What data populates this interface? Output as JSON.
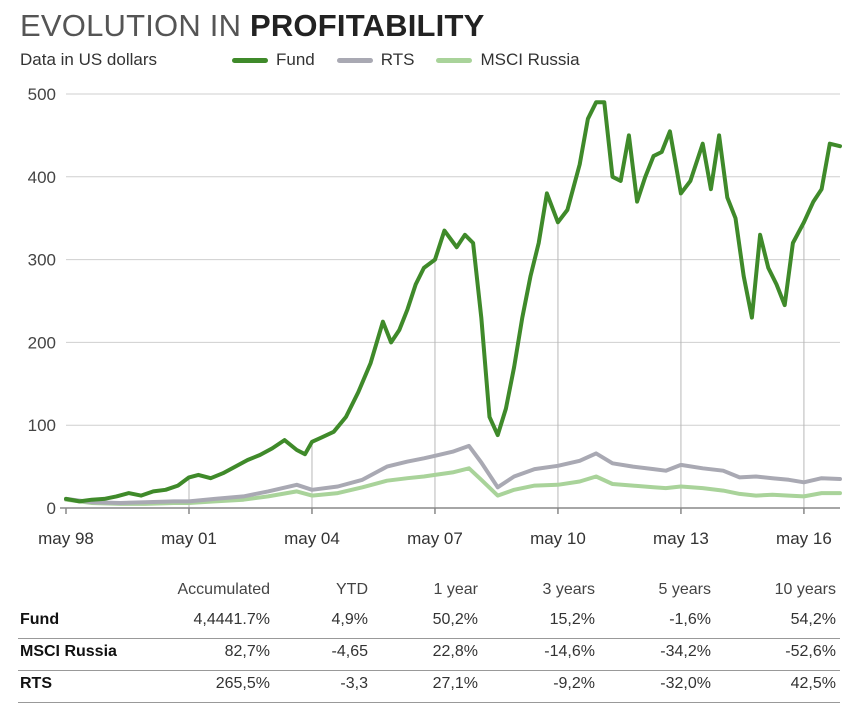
{
  "header": {
    "title_light": "EVOLUTION IN ",
    "title_bold": "PROFITABILITY",
    "subtitle": "Data in US dollars"
  },
  "colors": {
    "fund": "#3f8a2a",
    "rts": "#a9a9b3",
    "msci": "#a9d39a",
    "grid": "#cfcfcf",
    "axis": "#888888"
  },
  "chart_data": {
    "type": "line",
    "title": "EVOLUTION IN PROFITABILITY",
    "subtitle": "Data in US dollars",
    "xlabel": "",
    "ylabel": "",
    "x_ticks": [
      "may 98",
      "may 01",
      "may 04",
      "may 07",
      "may 10",
      "may 13",
      "may 16"
    ],
    "x_tick_years": [
      1998.37,
      2001.37,
      2004.37,
      2007.37,
      2010.37,
      2013.37,
      2016.37
    ],
    "y_ticks": [
      0,
      100,
      200,
      300,
      400,
      500
    ],
    "xlim": [
      1998.37,
      2017.25
    ],
    "ylim": [
      0,
      500
    ],
    "grid": "horizontal",
    "legend": "top",
    "series": [
      {
        "name": "Fund",
        "x": [
          1998.37,
          1998.7,
          1999.0,
          1999.3,
          1999.6,
          1999.9,
          2000.2,
          2000.5,
          2000.8,
          2001.1,
          2001.37,
          2001.6,
          2001.9,
          2002.2,
          2002.5,
          2002.8,
          2003.1,
          2003.4,
          2003.7,
          2004.0,
          2004.2,
          2004.37,
          2004.6,
          2004.9,
          2005.2,
          2005.5,
          2005.8,
          2006.1,
          2006.3,
          2006.5,
          2006.7,
          2006.9,
          2007.1,
          2007.37,
          2007.6,
          2007.9,
          2008.1,
          2008.3,
          2008.5,
          2008.7,
          2008.9,
          2009.1,
          2009.3,
          2009.5,
          2009.7,
          2009.9,
          2010.1,
          2010.37,
          2010.6,
          2010.9,
          2011.1,
          2011.3,
          2011.5,
          2011.7,
          2011.9,
          2012.1,
          2012.3,
          2012.5,
          2012.7,
          2012.9,
          2013.1,
          2013.37,
          2013.6,
          2013.9,
          2014.1,
          2014.3,
          2014.5,
          2014.7,
          2014.9,
          2015.1,
          2015.3,
          2015.5,
          2015.7,
          2015.9,
          2016.1,
          2016.37,
          2016.6,
          2016.8,
          2017.0,
          2017.25
        ],
        "values": [
          11,
          8,
          10,
          11,
          14,
          18,
          15,
          20,
          22,
          27,
          37,
          40,
          36,
          42,
          50,
          58,
          64,
          72,
          82,
          70,
          65,
          80,
          85,
          92,
          110,
          140,
          175,
          225,
          200,
          215,
          240,
          270,
          290,
          300,
          335,
          315,
          330,
          320,
          230,
          110,
          88,
          120,
          170,
          230,
          280,
          320,
          380,
          345,
          360,
          415,
          470,
          490,
          490,
          400,
          395,
          450,
          370,
          400,
          425,
          430,
          455,
          380,
          395,
          440,
          385,
          450,
          375,
          350,
          280,
          230,
          330,
          290,
          270,
          245,
          320,
          345,
          370,
          385,
          440,
          437
        ]
      },
      {
        "name": "RTS",
        "x": [
          1998.37,
          1999.0,
          1999.7,
          2000.3,
          2001.0,
          2001.37,
          2002.0,
          2002.7,
          2003.3,
          2004.0,
          2004.37,
          2005.0,
          2005.6,
          2006.2,
          2006.7,
          2007.1,
          2007.37,
          2007.8,
          2008.2,
          2008.5,
          2008.9,
          2009.3,
          2009.8,
          2010.37,
          2010.9,
          2011.3,
          2011.7,
          2012.2,
          2012.7,
          2013.0,
          2013.37,
          2013.9,
          2014.4,
          2014.8,
          2015.2,
          2015.6,
          2016.0,
          2016.37,
          2016.8,
          2017.25
        ],
        "values": [
          11,
          7,
          6,
          7,
          8,
          8,
          11,
          14,
          20,
          28,
          22,
          26,
          34,
          50,
          56,
          60,
          63,
          68,
          75,
          55,
          25,
          38,
          47,
          51,
          57,
          66,
          54,
          50,
          47,
          45,
          52,
          48,
          45,
          37,
          38,
          36,
          34,
          31,
          36,
          35
        ]
      },
      {
        "name": "MSCI Russia",
        "x": [
          1998.37,
          1999.0,
          1999.7,
          2000.3,
          2001.0,
          2001.37,
          2002.0,
          2002.7,
          2003.3,
          2004.0,
          2004.37,
          2005.0,
          2005.6,
          2006.2,
          2006.7,
          2007.1,
          2007.37,
          2007.8,
          2008.2,
          2008.5,
          2008.9,
          2009.3,
          2009.8,
          2010.37,
          2010.9,
          2011.3,
          2011.7,
          2012.2,
          2012.7,
          2013.0,
          2013.37,
          2013.9,
          2014.4,
          2014.8,
          2015.2,
          2015.6,
          2016.0,
          2016.37,
          2016.8,
          2017.25
        ],
        "values": [
          10,
          6,
          5,
          5,
          6,
          6,
          8,
          10,
          14,
          20,
          15,
          18,
          25,
          33,
          36,
          38,
          40,
          43,
          48,
          34,
          15,
          22,
          27,
          28,
          32,
          38,
          29,
          27,
          25,
          24,
          26,
          24,
          21,
          17,
          15,
          16,
          15,
          14,
          18,
          18
        ]
      }
    ]
  },
  "table": {
    "headers": [
      "Accumulated",
      "YTD",
      "1 year",
      "3 years",
      "5 years",
      "10 years"
    ],
    "rows": [
      {
        "label": "Fund",
        "values": [
          "4,4441.7%",
          "4,9%",
          "50,2%",
          "15,2%",
          "-1,6%",
          "54,2%"
        ]
      },
      {
        "label": "MSCI Russia",
        "values": [
          "82,7%",
          "-4,65",
          "22,8%",
          "-14,6%",
          "-34,2%",
          "-52,6%"
        ]
      },
      {
        "label": "RTS",
        "values": [
          "265,5%",
          "-3,3",
          "27,1%",
          "-9,2%",
          "-32,0%",
          "42,5%"
        ]
      }
    ]
  }
}
